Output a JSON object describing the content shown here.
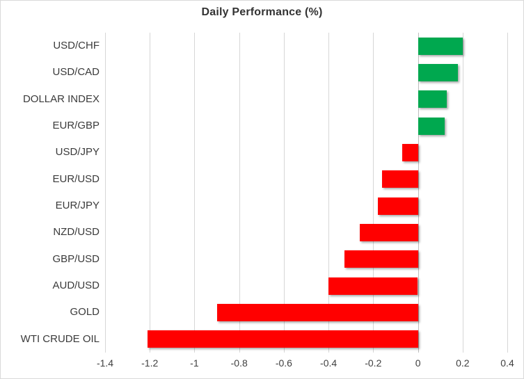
{
  "chart_data": {
    "type": "bar",
    "orientation": "horizontal",
    "title": "Daily Performance (%)",
    "categories": [
      "USD/CHF",
      "USD/CAD",
      "DOLLAR INDEX",
      "EUR/GBP",
      "USD/JPY",
      "EUR/USD",
      "EUR/JPY",
      "NZD/USD",
      "GBP/USD",
      "AUD/USD",
      "GOLD",
      "WTI CRUDE OIL"
    ],
    "values": [
      0.2,
      0.18,
      0.13,
      0.12,
      -0.07,
      -0.16,
      -0.18,
      -0.26,
      -0.33,
      -0.4,
      -0.9,
      -1.21
    ],
    "xlabel": "",
    "ylabel": "",
    "xlim": [
      -1.4,
      0.4
    ],
    "xticks": [
      -1.4,
      -1.2,
      -1.0,
      -0.8,
      -0.6,
      -0.4,
      -0.2,
      0,
      0.2,
      0.4
    ],
    "xtick_labels": [
      "-1.4",
      "-1.2",
      "-1",
      "-0.8",
      "-0.6",
      "-0.4",
      "-0.2",
      "0",
      "0.2",
      "0.4"
    ],
    "grid": true,
    "legend": false,
    "colors": {
      "positive": "#00A84F",
      "negative": "#FF0000"
    },
    "style_colors": {
      "title": "#333333",
      "labels": "#3A3A3A",
      "gridline": "#D6D6D6",
      "zero_axis": "#BDBDBD",
      "border": "#D9D9D9",
      "background": "#FFFFFF"
    }
  }
}
